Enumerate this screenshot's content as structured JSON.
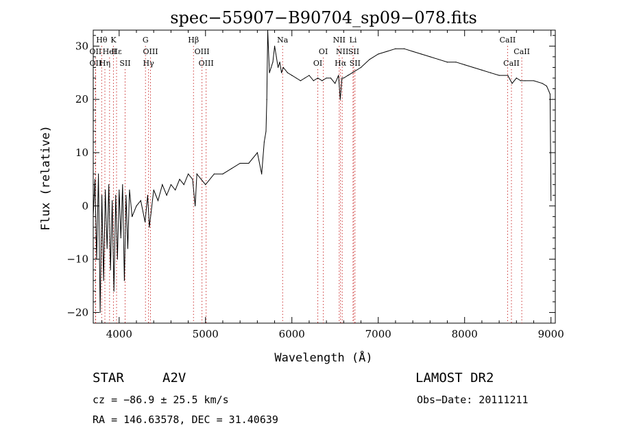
{
  "chart_data": {
    "type": "line",
    "title": "spec−55907−B90704_sp09−078.fits",
    "xlabel": "Wavelength (Å)",
    "ylabel": "Flux (relative)",
    "xlim": [
      3700,
      9050
    ],
    "ylim": [
      -22,
      33
    ],
    "xticks": [
      4000,
      5000,
      6000,
      7000,
      8000,
      9000
    ],
    "yticks": [
      -20,
      -10,
      0,
      10,
      20,
      30
    ],
    "line_color": "#000000",
    "marker_color": "#cc3333",
    "grid": false,
    "series": [
      {
        "x": [
          3700,
          3720,
          3740,
          3760,
          3780,
          3800,
          3820,
          3840,
          3860,
          3880,
          3900,
          3920,
          3940,
          3960,
          3980,
          4000,
          4020,
          4040,
          4060,
          4080,
          4100,
          4120,
          4150,
          4200,
          4250,
          4300,
          4330,
          4350,
          4400,
          4450,
          4500,
          4550,
          4600,
          4650,
          4700,
          4750,
          4800,
          4850,
          4880,
          4900,
          4950,
          5000,
          5100,
          5200,
          5300,
          5400,
          5500,
          5600,
          5650,
          5680,
          5700,
          5710,
          5720,
          5740,
          5760,
          5780,
          5800,
          5820,
          5840,
          5860,
          5880,
          5900,
          5950,
          6000,
          6050,
          6100,
          6150,
          6200,
          6250,
          6300,
          6350,
          6400,
          6450,
          6500,
          6540,
          6560,
          6580,
          6600,
          6650,
          6700,
          6800,
          6900,
          7000,
          7100,
          7200,
          7300,
          7400,
          7500,
          7600,
          7700,
          7800,
          7900,
          8000,
          8100,
          8200,
          8300,
          8400,
          8500,
          8550,
          8600,
          8650,
          8700,
          8800,
          8900,
          8950,
          8990,
          9000
        ],
        "y": [
          -2,
          5,
          -10,
          6,
          -20,
          2,
          -14,
          3,
          -8,
          4,
          -12,
          1,
          -16,
          2,
          -10,
          3,
          -6,
          4,
          -14,
          2,
          -8,
          3,
          -2,
          0,
          1,
          -3,
          2,
          -4,
          3,
          1,
          4,
          2,
          4,
          3,
          5,
          4,
          6,
          5,
          0,
          6,
          5,
          4,
          6,
          6,
          7,
          8,
          8,
          10,
          6,
          12,
          14,
          20,
          33,
          25,
          26,
          27,
          30,
          28,
          26,
          27,
          25,
          26,
          25,
          24.5,
          24,
          23.5,
          24,
          24.5,
          23.5,
          24,
          23.5,
          24,
          24,
          23,
          24.5,
          20,
          24,
          24,
          24.5,
          25,
          26,
          27.5,
          28.5,
          29,
          29.5,
          29.5,
          29,
          28.5,
          28,
          27.5,
          27,
          27,
          26.5,
          26,
          25.5,
          25,
          24.5,
          24.5,
          23,
          24,
          23.5,
          23.5,
          23.5,
          23,
          22.5,
          21,
          1
        ]
      }
    ],
    "spectral_lines": [
      {
        "label": "Hθ",
        "x": 3798,
        "row": 1
      },
      {
        "label": "K",
        "x": 3934,
        "row": 1
      },
      {
        "label": "G",
        "x": 4305,
        "row": 1
      },
      {
        "label": "Hβ",
        "x": 4861,
        "row": 1
      },
      {
        "label": "Na",
        "x": 5893,
        "row": 1
      },
      {
        "label": "NII",
        "x": 6548,
        "row": 1
      },
      {
        "label": "Li",
        "x": 6708,
        "row": 1
      },
      {
        "label": "CaII",
        "x": 8498,
        "row": 1
      },
      {
        "label": "OII",
        "x": 3727,
        "row": 2
      },
      {
        "label": "HeI",
        "x": 3889,
        "row": 2
      },
      {
        "label": "Hε",
        "x": 3970,
        "row": 2
      },
      {
        "label": "OIII",
        "x": 4363,
        "row": 2
      },
      {
        "label": "OIII",
        "x": 4959,
        "row": 2
      },
      {
        "label": "OI",
        "x": 6364,
        "row": 2
      },
      {
        "label": "NII",
        "x": 6583,
        "row": 2
      },
      {
        "label": "SII",
        "x": 6716,
        "row": 2
      },
      {
        "label": "CaII",
        "x": 8662,
        "row": 2
      },
      {
        "label": "OII",
        "x": 3727,
        "row": 3
      },
      {
        "label": "Hη",
        "x": 3835,
        "row": 3
      },
      {
        "label": "SII",
        "x": 4069,
        "row": 3
      },
      {
        "label": "Hγ",
        "x": 4340,
        "row": 3
      },
      {
        "label": "OIII",
        "x": 5007,
        "row": 3
      },
      {
        "label": "OI",
        "x": 6300,
        "row": 3
      },
      {
        "label": "Hα",
        "x": 6563,
        "row": 3
      },
      {
        "label": "SII",
        "x": 6731,
        "row": 3
      },
      {
        "label": "CaII",
        "x": 8542,
        "row": 3
      }
    ]
  },
  "info": {
    "class_label": "STAR",
    "subclass": "A2V",
    "survey": "LAMOST DR2",
    "cz": "cz = −86.9 ± 25.5 km/s",
    "obs_date": "Obs−Date: 20111211",
    "coords": "RA = 146.63578, DEC =  31.40639"
  }
}
